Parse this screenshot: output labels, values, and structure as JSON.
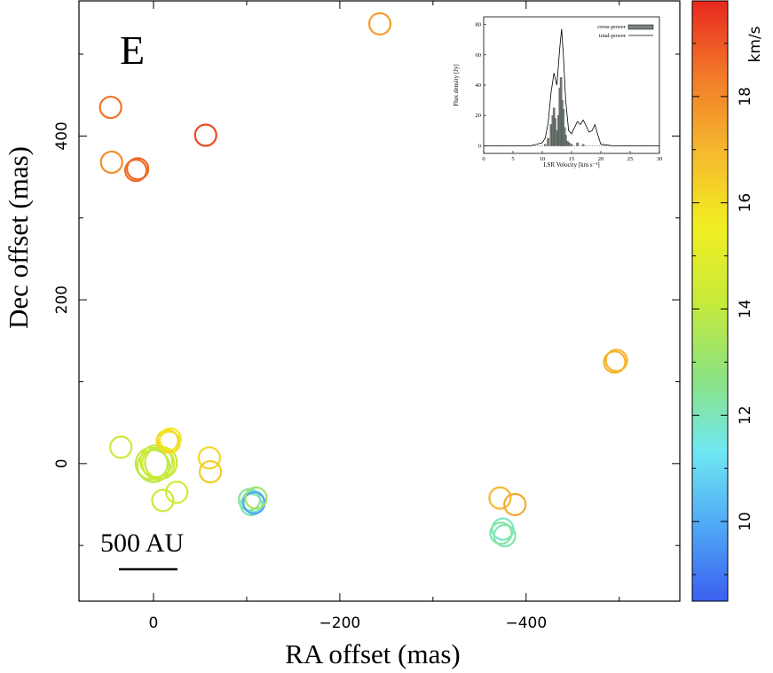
{
  "chart_data": [
    {
      "type": "scatter",
      "panel_label": "E",
      "xlabel": "RA offset (mas)",
      "ylabel": "Dec offset (mas)",
      "xlim": [
        80,
        -565
      ],
      "ylim": [
        -168,
        565
      ],
      "x_ticks": [
        0,
        -200,
        -400
      ],
      "x_tick_labels": [
        "0",
        "−200",
        "−400"
      ],
      "y_ticks": [
        0,
        200,
        400
      ],
      "y_tick_labels": [
        "0",
        "200",
        "400"
      ],
      "grid": false,
      "scale_bar_label": "500 AU",
      "colorbar": {
        "label": "km/s",
        "range": [
          8.5,
          19.8
        ],
        "ticks": [
          10,
          12,
          14,
          16,
          18
        ],
        "tick_labels": [
          "10",
          "12",
          "14",
          "16",
          "18"
        ],
        "colors": [
          "#3a5ff0",
          "#4fa8f5",
          "#6fe8f2",
          "#8de27e",
          "#c8ea3a",
          "#f2ee22",
          "#f5b82d",
          "#f27a2a",
          "#e8281e"
        ]
      },
      "points": [
        {
          "x": -243,
          "y": 537,
          "v": 17.6
        },
        {
          "x": 46,
          "y": 435,
          "v": 18.5
        },
        {
          "x": 45,
          "y": 368,
          "v": 17.9
        },
        {
          "x": 19,
          "y": 358,
          "v": 18.6
        },
        {
          "x": 17,
          "y": 360,
          "v": 18.7
        },
        {
          "x": -56,
          "y": 401,
          "v": 19.2
        },
        {
          "x": -495,
          "y": 124,
          "v": 17.1
        },
        {
          "x": -497,
          "y": 126,
          "v": 17.0
        },
        {
          "x": 35,
          "y": 20,
          "v": 14.3
        },
        {
          "x": 2,
          "y": 0,
          "v": 14.0
        },
        {
          "x": 0,
          "y": -3,
          "v": 13.9
        },
        {
          "x": -3,
          "y": 3,
          "v": 14.2
        },
        {
          "x": -5,
          "y": 0,
          "v": 14.4
        },
        {
          "x": -8,
          "y": 1,
          "v": 14.1
        },
        {
          "x": -15,
          "y": 28,
          "v": 16.3
        },
        {
          "x": -17,
          "y": 26,
          "v": 16.0
        },
        {
          "x": -18,
          "y": 30,
          "v": 15.7
        },
        {
          "x": -25,
          "y": -35,
          "v": 14.5
        },
        {
          "x": -10,
          "y": -45,
          "v": 14.3
        },
        {
          "x": -60,
          "y": 7,
          "v": 16.2
        },
        {
          "x": -61,
          "y": -10,
          "v": 16.5
        },
        {
          "x": -103,
          "y": -44,
          "v": 12.4
        },
        {
          "x": -105,
          "y": -50,
          "v": 12.1
        },
        {
          "x": -107,
          "y": -46,
          "v": 11.8
        },
        {
          "x": -108,
          "y": -48,
          "v": 9.8
        },
        {
          "x": -110,
          "y": -42,
          "v": 13.2
        },
        {
          "x": -372,
          "y": -42,
          "v": 17.0
        },
        {
          "x": -388,
          "y": -50,
          "v": 17.3
        },
        {
          "x": -375,
          "y": -80,
          "v": 11.9
        },
        {
          "x": -377,
          "y": -88,
          "v": 12.1
        },
        {
          "x": -373,
          "y": -85,
          "v": 12.3
        }
      ]
    },
    {
      "type": "line",
      "title": "",
      "xlabel": "LSR Velocity [km s⁻¹]",
      "ylabel": "Flux density [Jy]",
      "xlim": [
        0,
        30
      ],
      "ylim": [
        -5,
        85
      ],
      "x_ticks": [
        0,
        5,
        10,
        15,
        20,
        25,
        30
      ],
      "y_ticks": [
        0,
        20,
        40,
        60,
        80
      ],
      "legend_position": "top-right",
      "series": [
        {
          "name": "cross-power",
          "x": [
            10.5,
            11.0,
            11.5,
            11.8,
            12.0,
            12.2,
            12.5,
            12.8,
            13.0,
            13.2,
            13.4,
            13.6,
            13.8,
            14.0,
            14.3,
            14.6,
            15.0,
            16.0,
            17.0
          ],
          "values": [
            1,
            5,
            14,
            20,
            25,
            18,
            10,
            20,
            38,
            45,
            30,
            24,
            12,
            7,
            3,
            2,
            1,
            2,
            1
          ]
        },
        {
          "name": "total-power",
          "x": [
            0,
            2,
            4,
            6,
            8,
            9,
            10,
            10.5,
            11,
            11.5,
            12,
            12.5,
            13,
            13.3,
            13.6,
            14,
            14.5,
            15,
            15.5,
            16,
            16.5,
            17,
            17.5,
            18,
            18.5,
            19,
            19.5,
            20,
            22,
            25,
            28,
            30
          ],
          "values": [
            0,
            0,
            0,
            0,
            0,
            1,
            2,
            5,
            15,
            35,
            48,
            40,
            65,
            77,
            60,
            30,
            10,
            8,
            12,
            16,
            14,
            17,
            13,
            9,
            10,
            14,
            7,
            1,
            0,
            0,
            0,
            0
          ]
        }
      ]
    }
  ]
}
